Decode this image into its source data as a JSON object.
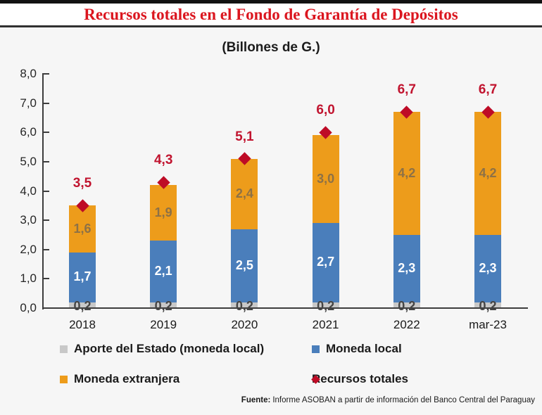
{
  "window": {
    "title": "Recursos totales en el Fondo de Garantía de Depósitos"
  },
  "subtitle": "(Billones de G.)",
  "chart_data": {
    "type": "bar",
    "stacked": true,
    "title": "Recursos totales en el Fondo de Garantía de Depósitos",
    "subtitle": "(Billones de G.)",
    "ylabel": "",
    "xlabel": "",
    "ylim": [
      0,
      8
    ],
    "grid": false,
    "legend_position": "bottom",
    "categories": [
      "2018",
      "2019",
      "2020",
      "2021",
      "2022",
      "mar-23"
    ],
    "series": [
      {
        "name": "Aporte del Estado (moneda local)",
        "color": "#c8c8c8",
        "label_color": "#454545",
        "values": [
          0.2,
          0.2,
          0.2,
          0.2,
          0.2,
          0.2
        ],
        "labels": [
          "0,2",
          "0,2",
          "0,2",
          "0,2",
          "0,2",
          "0,2"
        ]
      },
      {
        "name": "Moneda local",
        "color": "#4a7ebb",
        "label_color": "#ffffff",
        "values": [
          1.7,
          2.1,
          2.5,
          2.7,
          2.3,
          2.3
        ],
        "labels": [
          "1,7",
          "2,1",
          "2,5",
          "2,7",
          "2,3",
          "2,3"
        ]
      },
      {
        "name": "Moneda extranjera",
        "color": "#ed9c1b",
        "label_color": "#8d7146",
        "values": [
          1.6,
          1.9,
          2.4,
          3.0,
          4.2,
          4.2
        ],
        "labels": [
          "1,6",
          "1,9",
          "2,4",
          "3,0",
          "4,2",
          "4,2"
        ]
      }
    ],
    "totals": {
      "name": "Recursos totales",
      "marker": "diamond",
      "color": "#be0b26",
      "label_color": "#c1142f",
      "values": [
        3.5,
        4.3,
        5.1,
        6.0,
        6.7,
        6.7
      ],
      "labels": [
        "3,5",
        "4,3",
        "5,1",
        "6,0",
        "6,7",
        "6,7"
      ]
    },
    "yticks": [
      {
        "value": 0,
        "label": "0,0"
      },
      {
        "value": 1,
        "label": "1,0"
      },
      {
        "value": 2,
        "label": "2,0"
      },
      {
        "value": 3,
        "label": "3,0"
      },
      {
        "value": 4,
        "label": "4,0"
      },
      {
        "value": 5,
        "label": "5,0"
      },
      {
        "value": 6,
        "label": "6,0"
      },
      {
        "value": 7,
        "label": "7,0"
      },
      {
        "value": 8,
        "label": "8,0"
      }
    ]
  },
  "legend": {
    "items": [
      {
        "label": "Aporte del Estado (moneda local)",
        "marker": "square",
        "color": "#c8c8c8"
      },
      {
        "label": "Moneda local",
        "marker": "square",
        "color": "#4a7ebb"
      },
      {
        "label": "Moneda extranjera",
        "marker": "square",
        "color": "#ed9c1b"
      },
      {
        "label": "Recursos totales",
        "marker": "diamond",
        "color": "#be0b26"
      }
    ]
  },
  "footer": {
    "source_label": "Fuente:",
    "source_text": "Informe ASOBAN a partir de información del Banco Central del Paraguay"
  }
}
